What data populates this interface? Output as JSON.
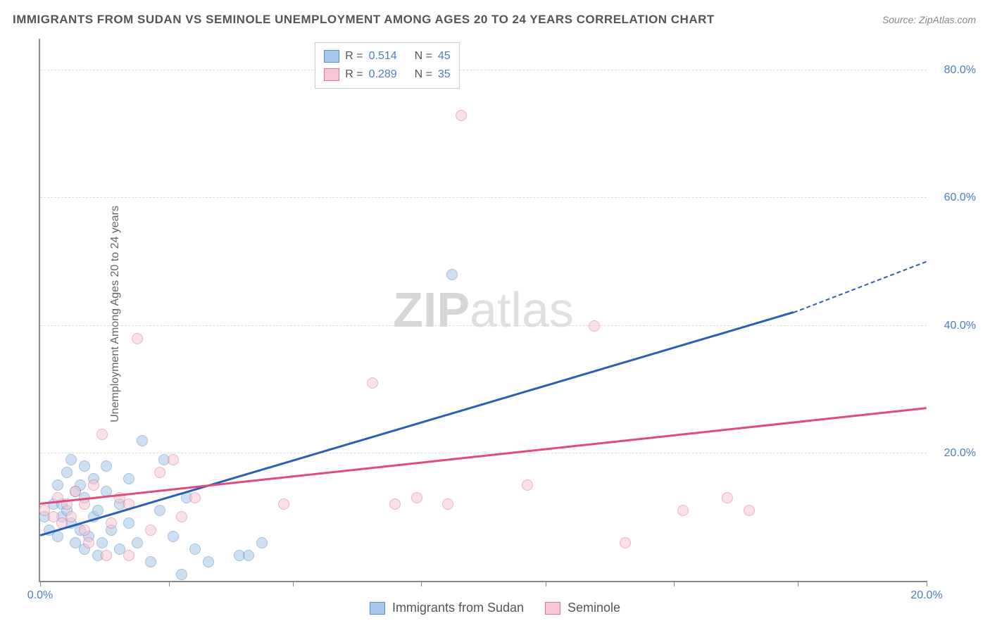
{
  "title": "IMMIGRANTS FROM SUDAN VS SEMINOLE UNEMPLOYMENT AMONG AGES 20 TO 24 YEARS CORRELATION CHART",
  "source": "Source: ZipAtlas.com",
  "watermark_bold": "ZIP",
  "watermark_rest": "atlas",
  "ylabel": "Unemployment Among Ages 20 to 24 years",
  "chart": {
    "type": "scatter",
    "xlim": [
      0,
      20
    ],
    "ylim": [
      0,
      85
    ],
    "xtick_positions": [
      0,
      2.9,
      5.7,
      8.6,
      11.4,
      14.3,
      17.1,
      20
    ],
    "xtick_labels": {
      "0": "0.0%",
      "20": "20.0%"
    },
    "ytick_positions": [
      20,
      40,
      60,
      80
    ],
    "ytick_labels": {
      "20": "20.0%",
      "40": "40.0%",
      "60": "60.0%",
      "80": "80.0%"
    },
    "background_color": "#ffffff",
    "grid_color": "#dddddd",
    "axis_color": "#888888",
    "tick_label_color": "#4a7ec9",
    "label_fontsize": 16,
    "title_fontsize": 17,
    "marker_radius": 8,
    "marker_opacity": 0.55,
    "series": [
      {
        "name": "Immigrants from Sudan",
        "color_fill": "#a6c8e8",
        "color_stroke": "#5b8fc7",
        "line_color": "#2b5fb5",
        "R": "0.514",
        "N": "45",
        "trend": {
          "x1": 0,
          "y1": 7,
          "x2": 17,
          "y2": 42,
          "dash_from_x": 17,
          "x3": 20,
          "y3": 50
        },
        "points": [
          [
            0.1,
            10
          ],
          [
            0.2,
            8
          ],
          [
            0.3,
            12
          ],
          [
            0.4,
            7
          ],
          [
            0.4,
            15
          ],
          [
            0.5,
            10
          ],
          [
            0.5,
            12
          ],
          [
            0.6,
            11
          ],
          [
            0.6,
            17
          ],
          [
            0.7,
            9
          ],
          [
            0.7,
            19
          ],
          [
            0.8,
            6
          ],
          [
            0.8,
            14
          ],
          [
            0.9,
            8
          ],
          [
            0.9,
            15
          ],
          [
            1.0,
            5
          ],
          [
            1.0,
            13
          ],
          [
            1.0,
            18
          ],
          [
            1.1,
            7
          ],
          [
            1.2,
            10
          ],
          [
            1.2,
            16
          ],
          [
            1.3,
            4
          ],
          [
            1.3,
            11
          ],
          [
            1.4,
            6
          ],
          [
            1.5,
            14
          ],
          [
            1.5,
            18
          ],
          [
            1.6,
            8
          ],
          [
            1.8,
            5
          ],
          [
            1.8,
            12
          ],
          [
            2.0,
            9
          ],
          [
            2.0,
            16
          ],
          [
            2.2,
            6
          ],
          [
            2.3,
            22
          ],
          [
            2.5,
            3
          ],
          [
            2.7,
            11
          ],
          [
            2.8,
            19
          ],
          [
            3.0,
            7
          ],
          [
            3.2,
            1
          ],
          [
            3.3,
            13
          ],
          [
            3.5,
            5
          ],
          [
            3.8,
            3
          ],
          [
            4.5,
            4
          ],
          [
            4.7,
            4
          ],
          [
            5.0,
            6
          ],
          [
            9.3,
            48
          ]
        ]
      },
      {
        "name": "Seminole",
        "color_fill": "#f6c7d5",
        "color_stroke": "#e27396",
        "line_color": "#e14b7a",
        "R": "0.289",
        "N": "35",
        "trend": {
          "x1": 0,
          "y1": 12,
          "x2": 20,
          "y2": 27
        },
        "points": [
          [
            0.1,
            11
          ],
          [
            0.3,
            10
          ],
          [
            0.4,
            13
          ],
          [
            0.5,
            9
          ],
          [
            0.6,
            12
          ],
          [
            0.7,
            10
          ],
          [
            0.8,
            14
          ],
          [
            1.0,
            8
          ],
          [
            1.0,
            12
          ],
          [
            1.1,
            6
          ],
          [
            1.2,
            15
          ],
          [
            1.4,
            23
          ],
          [
            1.5,
            4
          ],
          [
            1.6,
            9
          ],
          [
            1.8,
            13
          ],
          [
            2.0,
            4
          ],
          [
            2.2,
            38
          ],
          [
            2.5,
            8
          ],
          [
            2.7,
            17
          ],
          [
            3.0,
            19
          ],
          [
            3.2,
            10
          ],
          [
            3.5,
            13
          ],
          [
            5.5,
            12
          ],
          [
            7.5,
            31
          ],
          [
            8.0,
            12
          ],
          [
            8.5,
            13
          ],
          [
            9.2,
            12
          ],
          [
            9.5,
            73
          ],
          [
            11.0,
            15
          ],
          [
            12.5,
            40
          ],
          [
            13.2,
            6
          ],
          [
            14.5,
            11
          ],
          [
            15.5,
            13
          ],
          [
            16.0,
            11
          ],
          [
            2.0,
            12
          ]
        ]
      }
    ]
  },
  "stats_legend": {
    "r_label": "R =",
    "n_label": "N ="
  }
}
